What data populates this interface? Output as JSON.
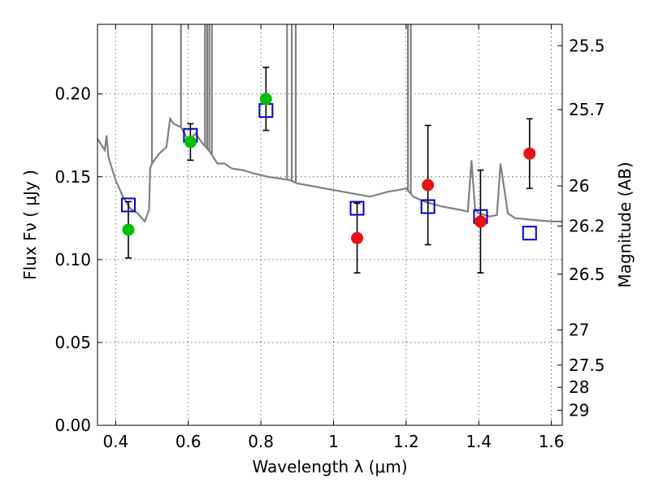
{
  "chart_data": {
    "type": "scatter",
    "title": "",
    "xlabel": "Wavelength  λ (μm)",
    "ylabel": "Flux  Fν  ( μJy )",
    "y2label": "Magnitude (AB)",
    "xlim": [
      0.35,
      1.63
    ],
    "ylim": [
      0.0,
      0.242
    ],
    "x_ticks": [
      0.4,
      0.6,
      0.8,
      1.0,
      1.2,
      1.4,
      1.6
    ],
    "x_tick_labels": [
      "0.4",
      "0.6",
      "0.8",
      "1",
      "1.2",
      "1.4",
      "1.6"
    ],
    "y_ticks": [
      0.0,
      0.05,
      0.1,
      0.15,
      0.2
    ],
    "y_tick_labels": [
      "0.00",
      "0.05",
      "0.10",
      "0.15",
      "0.20"
    ],
    "mag_ticks": [
      25.5,
      25.7,
      26,
      26.2,
      26.5,
      27,
      27.5,
      28,
      29
    ],
    "mag_tick_labels": [
      "25.5",
      "25.7",
      "26",
      "26.2",
      "26.5",
      "27",
      "27.5",
      "28",
      "29"
    ],
    "grid": true,
    "colors": {
      "template": "#808080",
      "optical_points": "#00c000",
      "nir_points": "#ee1111",
      "model_boxes": "#0000cc",
      "error_bars": "#000000"
    },
    "series": [
      {
        "name": "Model template spectrum",
        "kind": "line",
        "x": [
          0.35,
          0.37,
          0.375,
          0.38,
          0.4,
          0.42,
          0.44,
          0.46,
          0.48,
          0.492,
          0.495,
          0.5,
          0.52,
          0.54,
          0.55,
          0.56,
          0.58,
          0.6,
          0.62,
          0.64,
          0.66,
          0.68,
          0.7,
          0.72,
          0.75,
          0.78,
          0.8,
          0.82,
          0.85,
          0.88,
          0.9,
          0.95,
          1.0,
          1.05,
          1.1,
          1.15,
          1.18,
          1.2,
          1.22,
          1.25,
          1.3,
          1.35,
          1.37,
          1.38,
          1.39,
          1.4,
          1.43,
          1.45,
          1.46,
          1.48,
          1.5,
          1.55,
          1.6,
          1.63
        ],
        "y": [
          0.173,
          0.166,
          0.175,
          0.162,
          0.148,
          0.138,
          0.131,
          0.128,
          0.123,
          0.13,
          0.155,
          0.158,
          0.164,
          0.168,
          0.185,
          0.182,
          0.18,
          0.172,
          0.176,
          0.17,
          0.165,
          0.158,
          0.158,
          0.155,
          0.154,
          0.152,
          0.151,
          0.15,
          0.149,
          0.148,
          0.146,
          0.144,
          0.142,
          0.14,
          0.138,
          0.141,
          0.142,
          0.143,
          0.138,
          0.135,
          0.132,
          0.13,
          0.129,
          0.16,
          0.13,
          0.128,
          0.126,
          0.127,
          0.158,
          0.128,
          0.125,
          0.124,
          0.123,
          0.123
        ]
      },
      {
        "name": "Template emission lines",
        "kind": "lines",
        "x": [
          0.5,
          0.58,
          0.646,
          0.652,
          0.658,
          0.665,
          0.872,
          0.885,
          0.896,
          1.205,
          1.213
        ],
        "y": [
          0.242,
          0.242,
          0.242,
          0.242,
          0.242,
          0.242,
          0.242,
          0.242,
          0.242,
          0.242,
          0.242
        ]
      },
      {
        "name": "Optical photometry",
        "kind": "points",
        "x": [
          0.435,
          0.606,
          0.814
        ],
        "y": [
          0.118,
          0.171,
          0.197
        ],
        "err": [
          0.017,
          0.011,
          0.019
        ]
      },
      {
        "name": "NIR photometry",
        "kind": "points",
        "x": [
          1.065,
          1.26,
          1.405,
          1.54
        ],
        "y": [
          0.113,
          0.145,
          0.123,
          0.164
        ],
        "err": [
          0.021,
          0.036,
          0.031,
          0.021
        ]
      },
      {
        "name": "Model band fluxes",
        "kind": "squares",
        "x": [
          0.435,
          0.606,
          0.814,
          1.065,
          1.26,
          1.405,
          1.54
        ],
        "y": [
          0.133,
          0.175,
          0.19,
          0.131,
          0.132,
          0.126,
          0.116
        ]
      }
    ]
  }
}
